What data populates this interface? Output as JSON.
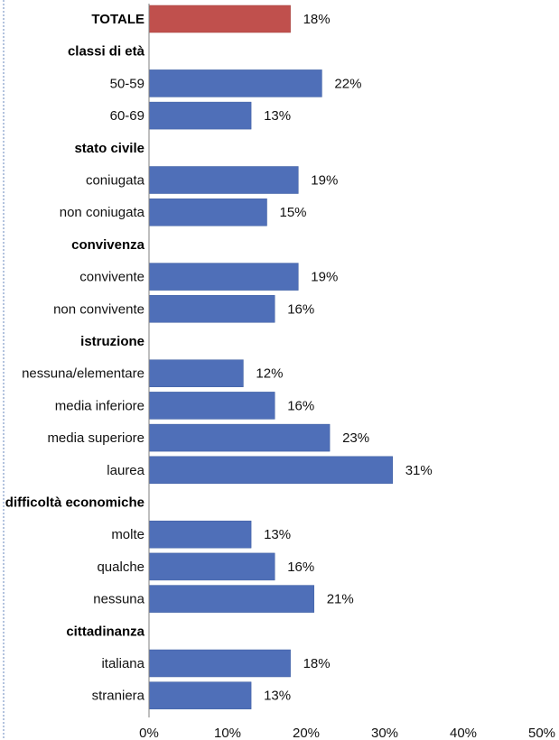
{
  "chart_data": {
    "type": "bar",
    "orientation": "horizontal",
    "value_suffix": "%",
    "xlim": [
      0,
      50
    ],
    "xticks": [
      0,
      10,
      20,
      30,
      40,
      50
    ],
    "xtick_labels": [
      "0%",
      "10%",
      "20%",
      "30%",
      "40%",
      "50%"
    ],
    "grid": false,
    "legend": "none",
    "colors": {
      "total_bar": "#C0504D",
      "bar": "#4F6FB8",
      "bar_stroke": "#3A5A9E",
      "frame": "#9AAFD3",
      "axis": "#7F7F7F"
    },
    "rows": [
      {
        "kind": "bar",
        "label": "TOTALE",
        "value": 18,
        "value_label": "18%",
        "bold": true,
        "highlight": true
      },
      {
        "kind": "group",
        "label": "classi di età"
      },
      {
        "kind": "bar",
        "label": "50-59",
        "value": 22,
        "value_label": "22%"
      },
      {
        "kind": "bar",
        "label": "60-69",
        "value": 13,
        "value_label": "13%"
      },
      {
        "kind": "group",
        "label": "stato civile"
      },
      {
        "kind": "bar",
        "label": "coniugata",
        "value": 19,
        "value_label": "19%"
      },
      {
        "kind": "bar",
        "label": "non coniugata",
        "value": 15,
        "value_label": "15%"
      },
      {
        "kind": "group",
        "label": "convivenza"
      },
      {
        "kind": "bar",
        "label": "convivente",
        "value": 19,
        "value_label": "19%"
      },
      {
        "kind": "bar",
        "label": "non convivente",
        "value": 16,
        "value_label": "16%"
      },
      {
        "kind": "group",
        "label": "istruzione"
      },
      {
        "kind": "bar",
        "label": "nessuna/elementare",
        "value": 12,
        "value_label": "12%"
      },
      {
        "kind": "bar",
        "label": "media inferiore",
        "value": 16,
        "value_label": "16%"
      },
      {
        "kind": "bar",
        "label": "media superiore",
        "value": 23,
        "value_label": "23%"
      },
      {
        "kind": "bar",
        "label": "laurea",
        "value": 31,
        "value_label": "31%"
      },
      {
        "kind": "group",
        "label": "difficoltà economiche"
      },
      {
        "kind": "bar",
        "label": "molte",
        "value": 13,
        "value_label": "13%"
      },
      {
        "kind": "bar",
        "label": "qualche",
        "value": 16,
        "value_label": "16%"
      },
      {
        "kind": "bar",
        "label": "nessuna",
        "value": 21,
        "value_label": "21%"
      },
      {
        "kind": "group",
        "label": "cittadinanza"
      },
      {
        "kind": "bar",
        "label": "italiana",
        "value": 18,
        "value_label": "18%"
      },
      {
        "kind": "bar",
        "label": "straniera",
        "value": 13,
        "value_label": "13%"
      }
    ]
  }
}
